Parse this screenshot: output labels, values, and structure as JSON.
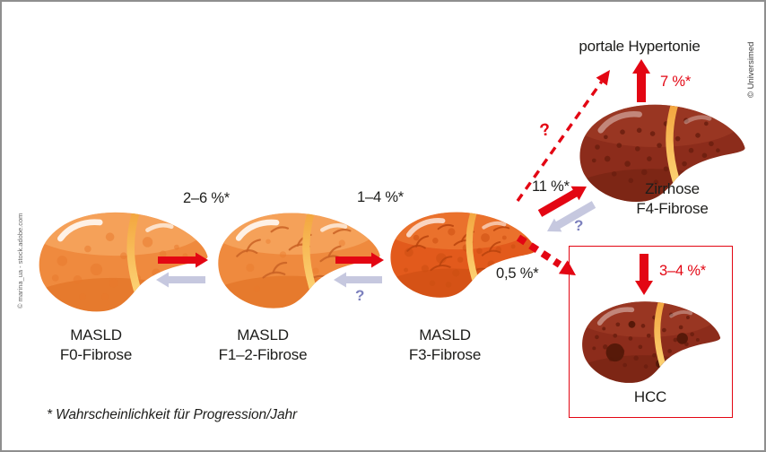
{
  "figure": {
    "footnote": "* Wahrscheinlichkeit für Progression/Jahr",
    "credit_left": "© marina_ua - stock.adobe.com",
    "credit_right": "© Universimed"
  },
  "nodes": {
    "f0": {
      "line1": "MASLD",
      "line2": "F0-Fibrose"
    },
    "f12": {
      "line1": "MASLD",
      "line2": "F1–2-Fibrose"
    },
    "f3": {
      "line1": "MASLD",
      "line2": "F3-Fibrose"
    },
    "f4": {
      "line1": "Zirrhose",
      "line2": "F4-Fibrose"
    },
    "hcc": {
      "label": "HCC"
    },
    "portal_hypertension": {
      "label": "portale Hypertonie"
    }
  },
  "rates": {
    "f0_to_f12": "2–6 %*",
    "f12_to_f3": "1–4 %*",
    "f3_to_f4": "11 %*",
    "f3_to_hcc": "0,5 %*",
    "f4_to_portal_hypertension": "7 %*",
    "f4_to_hcc": "3–4 %*",
    "question": "?"
  },
  "colors": {
    "arrow_red": "#e30613",
    "arrow_gray": "#c6c8df",
    "question_blue": "#7d81be",
    "text_dark": "#1d1d1b",
    "border_gray": "#8f8f8f",
    "livers": {
      "steatosis": {
        "base": "#ef8a3e",
        "wash": "#f7ad69",
        "shade": "#de6a1c",
        "spot": "#e8772b",
        "branch": "#c96224",
        "band_top": "#f3a63f",
        "band_bottom": "#fcd172",
        "highlight_opacity": 0.85
      },
      "advanced": {
        "base": "#e25a1c",
        "wash": "#ee7e35",
        "shade": "#c8490f",
        "spot": "#cc4e12",
        "branch": "#b8430d",
        "band_top": "#f3a63f",
        "band_bottom": "#fcd172",
        "highlight_opacity": 0.7
      },
      "cirrhosis": {
        "base": "#8c2c1b",
        "wash": "#a03c26",
        "shade": "#6e1f10",
        "spot": "#6d1f10",
        "blob": "#541808",
        "band_top": "#f3a63f",
        "band_bottom": "#fcd172",
        "highlight_opacity": 0.4
      }
    }
  }
}
